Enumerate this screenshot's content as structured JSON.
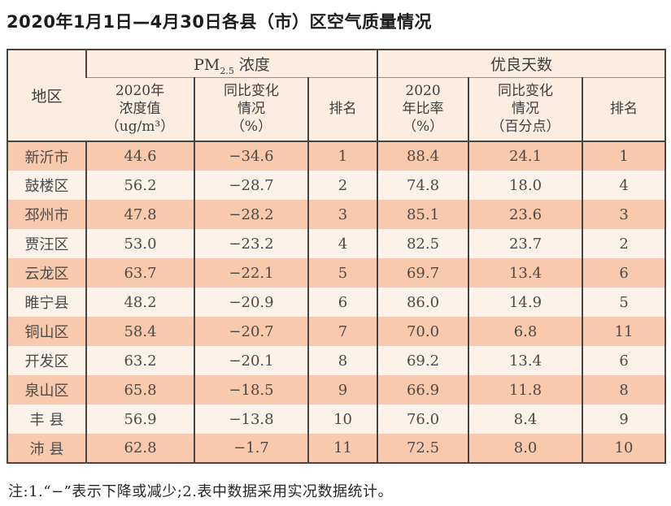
{
  "title": "2020年1月1日—4月30日各县（市）区空气质量情况",
  "table": {
    "region_header": "地区",
    "groups": {
      "pm": {
        "prefix": "PM",
        "sub": "2.5",
        "suffix": " 浓度"
      },
      "good": "优良天数"
    },
    "subheaders": {
      "pm_value": {
        "l1": "2020年",
        "l2": "浓度值",
        "l3": "（ug/m³）"
      },
      "pm_change": {
        "l1": "同比变化",
        "l2": "情况",
        "l3": "（%）"
      },
      "pm_rank": "排名",
      "good_rate": {
        "l1": "2020",
        "l2": "年比率",
        "l3": "（%）"
      },
      "good_change": {
        "l1": "同比变化",
        "l2": "情况",
        "l3": "（百分点）"
      },
      "good_rank": "排名"
    },
    "column_keys": [
      "region",
      "pm_value",
      "pm_change",
      "pm_rank",
      "good_rate",
      "good_change",
      "good_rank"
    ],
    "rows": [
      {
        "region": "新沂市",
        "pm_value": "44.6",
        "pm_change": "−34.6",
        "pm_rank": "1",
        "good_rate": "88.4",
        "good_change": "24.1",
        "good_rank": "1"
      },
      {
        "region": "鼓楼区",
        "pm_value": "56.2",
        "pm_change": "−28.7",
        "pm_rank": "2",
        "good_rate": "74.8",
        "good_change": "18.0",
        "good_rank": "4"
      },
      {
        "region": "邳州市",
        "pm_value": "47.8",
        "pm_change": "−28.2",
        "pm_rank": "3",
        "good_rate": "85.1",
        "good_change": "23.6",
        "good_rank": "3"
      },
      {
        "region": "贾汪区",
        "pm_value": "53.0",
        "pm_change": "−23.2",
        "pm_rank": "4",
        "good_rate": "82.5",
        "good_change": "23.7",
        "good_rank": "2"
      },
      {
        "region": "云龙区",
        "pm_value": "63.7",
        "pm_change": "−22.1",
        "pm_rank": "5",
        "good_rate": "69.7",
        "good_change": "13.4",
        "good_rank": "6"
      },
      {
        "region": "睢宁县",
        "pm_value": "48.2",
        "pm_change": "−20.9",
        "pm_rank": "6",
        "good_rate": "86.0",
        "good_change": "14.9",
        "good_rank": "5"
      },
      {
        "region": "铜山区",
        "pm_value": "58.4",
        "pm_change": "−20.7",
        "pm_rank": "7",
        "good_rate": "70.0",
        "good_change": "6.8",
        "good_rank": "11"
      },
      {
        "region": "开发区",
        "pm_value": "63.2",
        "pm_change": "−20.1",
        "pm_rank": "8",
        "good_rate": "69.2",
        "good_change": "13.4",
        "good_rank": "6"
      },
      {
        "region": "泉山区",
        "pm_value": "65.8",
        "pm_change": "−18.5",
        "pm_rank": "9",
        "good_rate": "66.9",
        "good_change": "11.8",
        "good_rank": "8"
      },
      {
        "region": "丰 县",
        "pm_value": "56.9",
        "pm_change": "−13.8",
        "pm_rank": "10",
        "good_rate": "76.0",
        "good_change": "8.4",
        "good_rank": "9"
      },
      {
        "region": "沛 县",
        "pm_value": "62.8",
        "pm_change": "−1.7",
        "pm_rank": "11",
        "good_rate": "72.5",
        "good_change": "8.0",
        "good_rank": "10"
      }
    ]
  },
  "note": "注:1.“−”表示下降或减少;2.表中数据采用实况数据统计。",
  "colors": {
    "row_odd": "#f8c9ac",
    "row_even": "#fdf2e9",
    "header_bg": "#fbeee1",
    "border_dark": "#454545",
    "border_light": "#8f8f8f",
    "text": "#4a4a4a"
  }
}
